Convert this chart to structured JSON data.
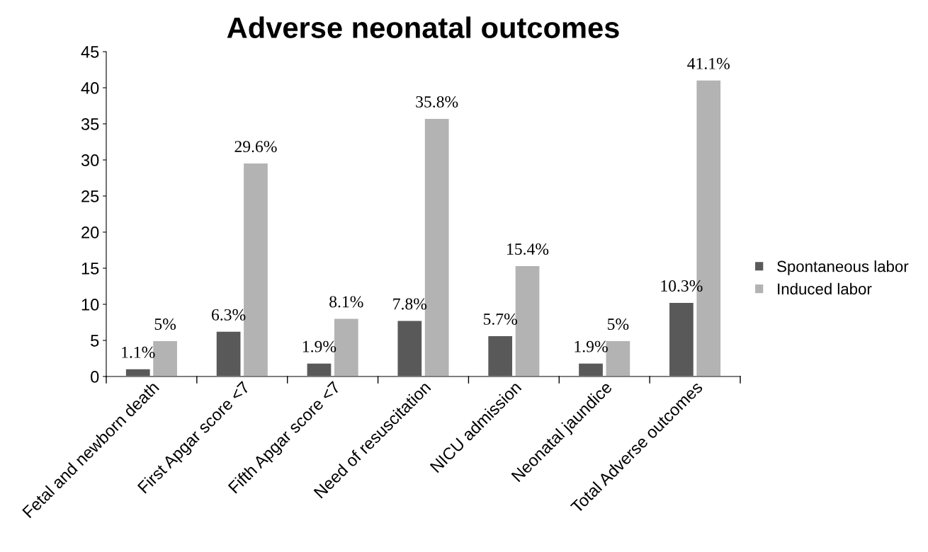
{
  "chart_data": {
    "type": "bar",
    "title": "Adverse neonatal outcomes",
    "categories": [
      "Fetal and newborn death",
      "First Apgar score <7",
      "Fifth Apgar score <7",
      "Need of resuscitation",
      "NICU admission",
      "Neonatal jaundice",
      "Total Adverse outcomes"
    ],
    "series": [
      {
        "name": "Spontaneous labor",
        "color": "#595959",
        "values": [
          1.1,
          6.3,
          1.9,
          7.8,
          5.7,
          1.9,
          10.3
        ],
        "value_labels": [
          "1.1%",
          "6.3%",
          "1.9%",
          "7.8%",
          "5.7%",
          "1.9%",
          "10.3%"
        ]
      },
      {
        "name": "Induced labor",
        "color": "#b3b3b3",
        "values": [
          5,
          29.6,
          8.1,
          35.8,
          15.4,
          5,
          41.1
        ],
        "value_labels": [
          "5%",
          "29.6%",
          "8.1%",
          "35.8%",
          "15.4%",
          "5%",
          "41.1%"
        ]
      }
    ],
    "ylim": [
      0,
      45
    ],
    "yticks": [
      0,
      5,
      10,
      15,
      20,
      25,
      30,
      35,
      40,
      45
    ],
    "grid": false,
    "legend": "right"
  }
}
